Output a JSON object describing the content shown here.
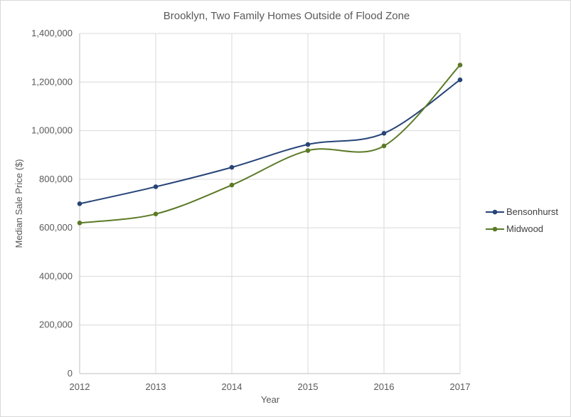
{
  "chart_data": {
    "type": "line",
    "title": "Brooklyn, Two Family Homes Outside of Flood Zone",
    "xlabel": "Year",
    "ylabel": "Median Sale Price ($)",
    "x": [
      "2012",
      "2013",
      "2014",
      "2015",
      "2016",
      "2017"
    ],
    "ylim": [
      0,
      1400000
    ],
    "yticks": [
      0,
      200000,
      400000,
      600000,
      800000,
      1000000,
      1200000,
      1400000
    ],
    "ytick_labels": [
      "0",
      "200,000",
      "400,000",
      "600,000",
      "800,000",
      "1,000,000",
      "1,200,000",
      "1,400,000"
    ],
    "grid": true,
    "legend_position": "right",
    "series": [
      {
        "name": "Bensonhurst",
        "color": "#264478",
        "values": [
          699000,
          769000,
          849000,
          943000,
          989000,
          1209000
        ]
      },
      {
        "name": "Midwood",
        "color": "#5b7a26",
        "values": [
          620000,
          657000,
          776000,
          918000,
          937000,
          1270000
        ]
      }
    ]
  }
}
